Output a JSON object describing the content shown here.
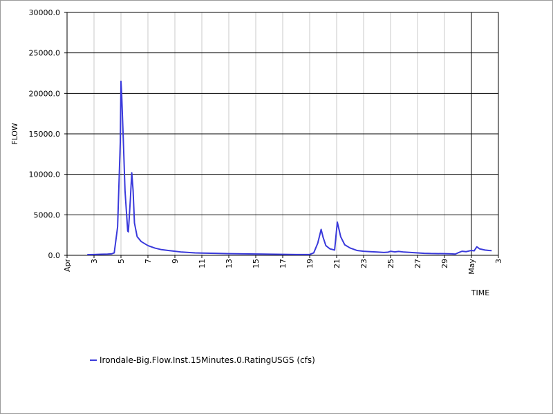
{
  "chart_data": {
    "type": "line",
    "xlabel": "TIME",
    "ylabel": "FLOW",
    "ylim": [
      0,
      30000
    ],
    "yticks": [
      "0.0",
      "5000.0",
      "10000.0",
      "15000.0",
      "20000.0",
      "25000.0",
      "30000.0"
    ],
    "xlim": [
      "Apr 1",
      "May 3"
    ],
    "xticks": [
      {
        "day": 1,
        "label": "Apr"
      },
      {
        "day": 3,
        "label": "3"
      },
      {
        "day": 5,
        "label": "5"
      },
      {
        "day": 7,
        "label": "7"
      },
      {
        "day": 9,
        "label": "9"
      },
      {
        "day": 11,
        "label": "11"
      },
      {
        "day": 13,
        "label": "13"
      },
      {
        "day": 15,
        "label": "15"
      },
      {
        "day": 17,
        "label": "17"
      },
      {
        "day": 19,
        "label": "19"
      },
      {
        "day": 21,
        "label": "21"
      },
      {
        "day": 23,
        "label": "23"
      },
      {
        "day": 25,
        "label": "25"
      },
      {
        "day": 27,
        "label": "27"
      },
      {
        "day": 29,
        "label": "29"
      },
      {
        "day": 31,
        "label": "May"
      },
      {
        "day": 33,
        "label": "3"
      }
    ],
    "grid": true,
    "legend_position": "bottom-left",
    "series": [
      {
        "name": "Irondale-Big.Flow.Inst.15Minutes.0.RatingUSGS (cfs)",
        "color": "#3a3adb",
        "points": [
          [
            2.5,
            80
          ],
          [
            3.0,
            100
          ],
          [
            3.5,
            130
          ],
          [
            4.0,
            150
          ],
          [
            4.3,
            180
          ],
          [
            4.5,
            300
          ],
          [
            4.75,
            3500
          ],
          [
            4.95,
            14000
          ],
          [
            5.0,
            21500
          ],
          [
            5.05,
            20000
          ],
          [
            5.2,
            13000
          ],
          [
            5.3,
            8000
          ],
          [
            5.5,
            3000
          ],
          [
            5.55,
            2900
          ],
          [
            5.7,
            7000
          ],
          [
            5.8,
            10200
          ],
          [
            5.9,
            8000
          ],
          [
            6.0,
            4000
          ],
          [
            6.2,
            2300
          ],
          [
            6.5,
            1700
          ],
          [
            7.0,
            1200
          ],
          [
            7.5,
            900
          ],
          [
            8.0,
            700
          ],
          [
            8.5,
            600
          ],
          [
            9.0,
            500
          ],
          [
            9.5,
            400
          ],
          [
            10.0,
            350
          ],
          [
            10.5,
            300
          ],
          [
            11.0,
            280
          ],
          [
            12.0,
            250
          ],
          [
            13.0,
            200
          ],
          [
            14.0,
            180
          ],
          [
            15.0,
            160
          ],
          [
            16.0,
            140
          ],
          [
            17.0,
            120
          ],
          [
            18.0,
            100
          ],
          [
            19.0,
            100
          ],
          [
            19.3,
            300
          ],
          [
            19.6,
            1500
          ],
          [
            19.85,
            3200
          ],
          [
            20.0,
            2200
          ],
          [
            20.2,
            1200
          ],
          [
            20.5,
            800
          ],
          [
            20.85,
            650
          ],
          [
            21.05,
            4100
          ],
          [
            21.3,
            2300
          ],
          [
            21.6,
            1300
          ],
          [
            22.0,
            900
          ],
          [
            22.5,
            600
          ],
          [
            23.0,
            500
          ],
          [
            23.5,
            450
          ],
          [
            24.0,
            400
          ],
          [
            24.5,
            350
          ],
          [
            24.8,
            380
          ],
          [
            25.0,
            500
          ],
          [
            25.3,
            420
          ],
          [
            25.6,
            480
          ],
          [
            26.0,
            400
          ],
          [
            26.5,
            350
          ],
          [
            27.0,
            300
          ],
          [
            27.5,
            250
          ],
          [
            28.0,
            220
          ],
          [
            29.0,
            200
          ],
          [
            29.5,
            180
          ],
          [
            29.8,
            150
          ],
          [
            30.0,
            300
          ],
          [
            30.3,
            500
          ],
          [
            30.6,
            450
          ],
          [
            31.0,
            600
          ],
          [
            31.2,
            550
          ],
          [
            31.4,
            1050
          ],
          [
            31.6,
            800
          ],
          [
            32.0,
            650
          ],
          [
            32.3,
            600
          ],
          [
            32.5,
            580
          ]
        ]
      }
    ]
  }
}
